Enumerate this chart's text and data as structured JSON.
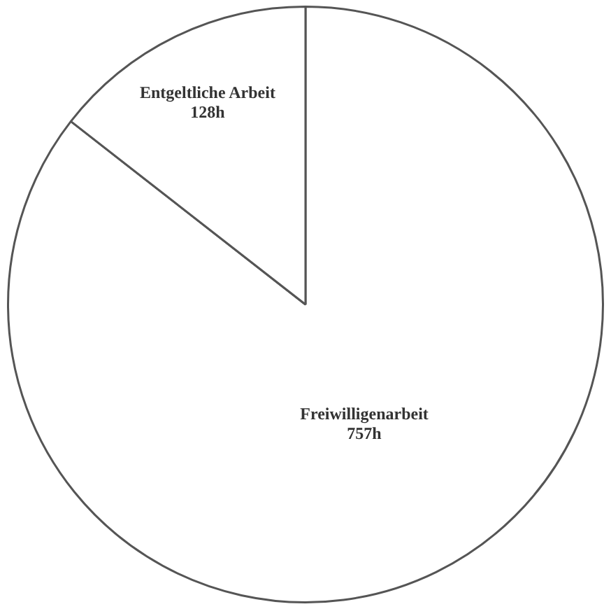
{
  "chart_data": {
    "type": "pie",
    "categories": [
      "Freiwilligenarbeit",
      "Entgeltliche Arbeit"
    ],
    "values": [
      757,
      128
    ],
    "colors": [
      "#ffffff",
      "#ffffff"
    ],
    "value_labels": [
      "757h",
      "128h"
    ],
    "legend": false
  }
}
